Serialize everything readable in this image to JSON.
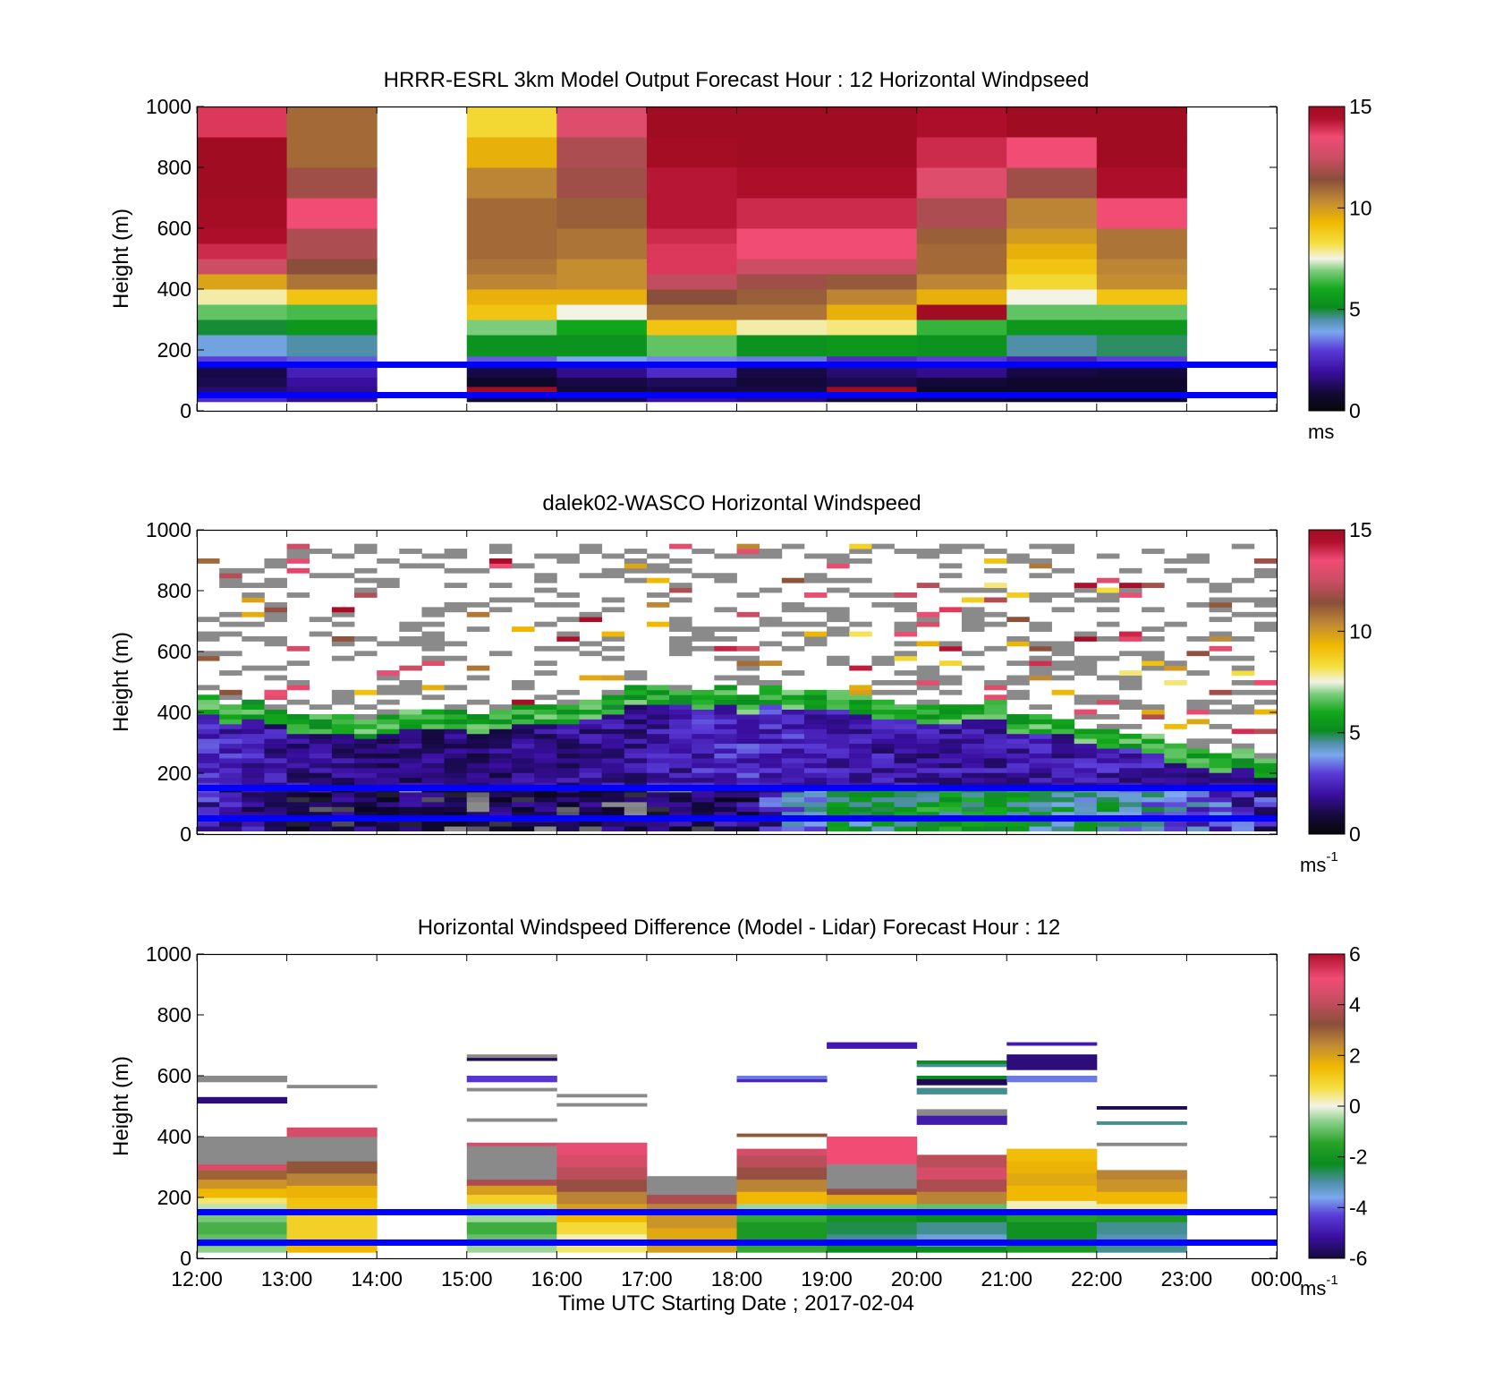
{
  "figure": {
    "xlabel": "Time UTC  Starting Date ; 2017-02-04",
    "x_ticks": [
      "12:00",
      "13:00",
      "14:00",
      "15:00",
      "16:00",
      "17:00",
      "18:00",
      "19:00",
      "20:00",
      "21:00",
      "22:00",
      "23:00",
      "00:00"
    ]
  },
  "chart_data": [
    {
      "type": "heatmap",
      "title": "HRRR-ESRL 3km Model Output   Forecast Hour : 12 Horizontal Windpseed",
      "ylabel": "Height (m)",
      "ylim": [
        0,
        1000
      ],
      "y_ticks": [
        "0",
        "200",
        "400",
        "600",
        "800",
        "1000"
      ],
      "colorbar": {
        "min": 0,
        "max": 15,
        "ticks": [
          "0",
          "5",
          "10",
          "15"
        ],
        "unit": "ms",
        "unit_sup": ""
      },
      "reference_lines_m": [
        50,
        150
      ],
      "x_hours": [
        12,
        13,
        14,
        15,
        16,
        17,
        18,
        19,
        20,
        21,
        22,
        23
      ],
      "bin_edges_m": [
        30,
        50,
        80,
        110,
        150,
        180,
        250,
        300,
        350,
        400,
        450,
        500,
        550,
        600,
        700,
        800,
        900,
        1000
      ],
      "columns": [
        {
          "hour": 12,
          "values": [
            2.5,
            1.5,
            1.2,
            1.0,
            2.8,
            3.6,
            4.5,
            6.5,
            7.8,
            9.8,
            12.5,
            14.0,
            14.5,
            14.8,
            15.0,
            15.0,
            13.8
          ]
        },
        {
          "hour": 13,
          "values": [
            1.8,
            1.8,
            2.0,
            2.3,
            3.0,
            4.0,
            5.0,
            6.2,
            9.0,
            10.8,
            11.5,
            12.0,
            12.0,
            13.5,
            11.8,
            11.0,
            11.0
          ]
        },
        {
          "hour": 14,
          "values": null
        },
        {
          "hour": 15,
          "values": [
            0.7,
            15.0,
            0.5,
            1.0,
            3.0,
            4.8,
            6.8,
            9.0,
            9.5,
            10.5,
            10.8,
            11.0,
            11.0,
            11.0,
            10.5,
            9.5,
            8.5
          ]
        },
        {
          "hour": 16,
          "values": [
            1.2,
            0.8,
            1.0,
            1.8,
            3.5,
            4.8,
            5.5,
            7.5,
            9.5,
            10.3,
            10.3,
            10.8,
            10.8,
            11.2,
            11.8,
            12.0,
            13.0
          ]
        },
        {
          "hour": 17,
          "values": [
            2.0,
            1.0,
            1.3,
            2.5,
            3.3,
            6.5,
            9.0,
            10.8,
            11.5,
            12.3,
            13.8,
            13.8,
            14.0,
            14.3,
            14.3,
            14.8,
            15.0
          ]
        },
        {
          "hour": 18,
          "values": [
            1.6,
            1.0,
            0.8,
            1.0,
            3.2,
            4.8,
            7.8,
            10.8,
            11.2,
            11.8,
            12.5,
            13.5,
            13.5,
            14.0,
            14.5,
            15.0,
            15.0
          ]
        },
        {
          "hour": 19,
          "values": [
            0.8,
            15.0,
            1.2,
            1.5,
            2.5,
            5.0,
            8.0,
            9.5,
            10.5,
            11.3,
            12.5,
            13.5,
            13.5,
            14.0,
            14.5,
            15.0,
            15.0
          ]
        },
        {
          "hour": 20,
          "values": [
            0.7,
            0.5,
            0.8,
            1.8,
            2.8,
            4.8,
            6.0,
            15.0,
            9.5,
            10.5,
            11.0,
            11.0,
            11.2,
            12.0,
            13.0,
            14.0,
            14.5
          ]
        },
        {
          "hour": 21,
          "values": [
            0.6,
            0.6,
            0.6,
            1.0,
            2.3,
            4.0,
            5.0,
            6.5,
            7.5,
            8.5,
            9.0,
            9.5,
            10.0,
            10.5,
            11.8,
            13.5,
            15.0
          ]
        },
        {
          "hour": 22,
          "values": [
            0.6,
            0.6,
            0.6,
            0.8,
            2.8,
            4.3,
            5.0,
            6.5,
            9.0,
            10.3,
            10.5,
            10.8,
            10.8,
            13.5,
            14.5,
            15.0,
            15.0
          ]
        },
        {
          "hour": 23,
          "values": null
        }
      ]
    },
    {
      "type": "heatmap",
      "title": "dalek02-WASCO  Horizontal Windspeed",
      "ylabel": "Height (m)",
      "ylim": [
        0,
        1000
      ],
      "y_ticks": [
        "0",
        "200",
        "400",
        "600",
        "800",
        "1000"
      ],
      "colorbar": {
        "min": 0,
        "max": 15,
        "ticks": [
          "0",
          "5",
          "10",
          "15"
        ],
        "unit": "ms",
        "unit_sup": "-1"
      },
      "reference_lines_m": [
        50,
        150
      ],
      "time_step_minutes": 15,
      "height_step_m": 16,
      "profile_hours": [
        12.0,
        13.0,
        14.0,
        15.0,
        16.0,
        17.0,
        18.0,
        19.0,
        20.0,
        21.0,
        22.0,
        23.0,
        24.0
      ],
      "profile_surface_speed": [
        2.2,
        1.2,
        1.0,
        1.0,
        1.0,
        1.0,
        1.5,
        4.5,
        5.0,
        4.5,
        4.0,
        3.0,
        1.8
      ],
      "profile_midlevel_speed": [
        2.5,
        1.8,
        1.5,
        1.5,
        1.8,
        2.0,
        2.5,
        2.2,
        2.0,
        2.0,
        2.2,
        2.0,
        1.5
      ],
      "profile_boundary_top_m": [
        440,
        400,
        380,
        400,
        420,
        480,
        460,
        450,
        430,
        400,
        340,
        270,
        250
      ],
      "aloft_speed": 16
    },
    {
      "type": "heatmap",
      "title": "Horizontal Windspeed Difference (Model - Lidar) Forecast Hour : 12",
      "ylabel": "Height (m)",
      "ylim": [
        0,
        1000
      ],
      "y_ticks": [
        "0",
        "200",
        "400",
        "600",
        "800",
        "1000"
      ],
      "colorbar": {
        "min": -6,
        "max": 6,
        "ticks": [
          "-6",
          "-4",
          "-2",
          "0",
          "2",
          "4",
          "6"
        ],
        "unit": "ms",
        "unit_sup": "-1"
      },
      "reference_lines_m": [
        50,
        150
      ],
      "x_hours": [
        12,
        13,
        14,
        15,
        16,
        17,
        18,
        19,
        20,
        21,
        22,
        23
      ],
      "columns": [
        {
          "hour": 12,
          "segments": [
            [
              20,
              40,
              -0.6
            ],
            [
              40,
              80,
              -1.0
            ],
            [
              80,
              120,
              -1.3
            ],
            [
              120,
              150,
              -0.8
            ],
            [
              150,
              180,
              -0.3
            ],
            [
              180,
              200,
              0.5
            ],
            [
              200,
              230,
              1.5
            ],
            [
              230,
              260,
              2.2
            ],
            [
              260,
              290,
              3.0
            ],
            [
              290,
              310,
              4.5
            ],
            [
              310,
              400,
              6.2
            ],
            [
              510,
              530,
              -5.5
            ],
            [
              580,
              600,
              6.2
            ]
          ]
        },
        {
          "hour": 13,
          "segments": [
            [
              20,
              60,
              1.5
            ],
            [
              60,
              150,
              1.0
            ],
            [
              150,
              200,
              1.3
            ],
            [
              200,
              240,
              1.6
            ],
            [
              240,
              280,
              2.5
            ],
            [
              280,
              320,
              3.2
            ],
            [
              320,
              400,
              6.2
            ],
            [
              400,
              430,
              4.5
            ],
            [
              560,
              570,
              6.2
            ]
          ]
        },
        {
          "hour": 14,
          "segments": []
        },
        {
          "hour": 15,
          "segments": [
            [
              20,
              50,
              -0.5
            ],
            [
              50,
              80,
              -1.0
            ],
            [
              80,
              120,
              -1.4
            ],
            [
              120,
              150,
              -0.5
            ],
            [
              150,
              180,
              -0.3
            ],
            [
              180,
              210,
              1.0
            ],
            [
              210,
              240,
              2.0
            ],
            [
              240,
              260,
              3.8
            ],
            [
              260,
              370,
              6.2
            ],
            [
              370,
              380,
              4.5
            ],
            [
              450,
              460,
              6.2
            ],
            [
              550,
              560,
              6.2
            ],
            [
              580,
              600,
              -4.5
            ],
            [
              650,
              660,
              -5.8
            ],
            [
              660,
              670,
              6.2
            ]
          ]
        },
        {
          "hour": 16,
          "segments": [
            [
              20,
              40,
              0.5
            ],
            [
              40,
              80,
              0.2
            ],
            [
              80,
              120,
              0.8
            ],
            [
              120,
              150,
              1.5
            ],
            [
              150,
              180,
              2.0
            ],
            [
              180,
              220,
              2.5
            ],
            [
              220,
              260,
              3.5
            ],
            [
              260,
              300,
              4.0
            ],
            [
              300,
              340,
              4.5
            ],
            [
              340,
              380,
              4.8
            ],
            [
              500,
              510,
              6.2
            ],
            [
              530,
              540,
              6.2
            ]
          ]
        },
        {
          "hour": 17,
          "segments": [
            [
              20,
              50,
              2.0
            ],
            [
              50,
              100,
              1.8
            ],
            [
              100,
              150,
              2.2
            ],
            [
              150,
              180,
              2.5
            ],
            [
              180,
              210,
              3.8
            ],
            [
              210,
              270,
              6.2
            ]
          ]
        },
        {
          "hour": 18,
          "segments": [
            [
              20,
              60,
              -1.5
            ],
            [
              60,
              120,
              -2.0
            ],
            [
              120,
              150,
              -1.5
            ],
            [
              150,
              180,
              -0.5
            ],
            [
              180,
              220,
              1.5
            ],
            [
              220,
              260,
              2.5
            ],
            [
              260,
              300,
              3.5
            ],
            [
              300,
              340,
              4.0
            ],
            [
              340,
              360,
              4.5
            ],
            [
              400,
              410,
              3.2
            ],
            [
              580,
              590,
              -4.8
            ],
            [
              590,
              600,
              -4.0
            ]
          ]
        },
        {
          "hour": 19,
          "segments": [
            [
              20,
              50,
              -2.5
            ],
            [
              50,
              80,
              -3.0
            ],
            [
              80,
              120,
              -2.7
            ],
            [
              120,
              150,
              -2.2
            ],
            [
              150,
              180,
              -0.8
            ],
            [
              180,
              210,
              1.8
            ],
            [
              210,
              230,
              3.5
            ],
            [
              230,
              310,
              6.2
            ],
            [
              310,
              400,
              5.0
            ],
            [
              690,
              710,
              -5.0
            ]
          ]
        },
        {
          "hour": 20,
          "segments": [
            [
              20,
              40,
              -2.5
            ],
            [
              40,
              80,
              -3.5
            ],
            [
              80,
              120,
              -3.0
            ],
            [
              120,
              150,
              -2.5
            ],
            [
              150,
              180,
              -1.0
            ],
            [
              180,
              220,
              2.5
            ],
            [
              220,
              260,
              3.8
            ],
            [
              260,
              300,
              4.5
            ],
            [
              300,
              340,
              4.0
            ],
            [
              440,
              470,
              -5.0
            ],
            [
              470,
              490,
              6.2
            ],
            [
              540,
              560,
              -3.0
            ],
            [
              570,
              590,
              -5.8
            ],
            [
              590,
              600,
              -2.5
            ],
            [
              630,
              640,
              -3.0
            ],
            [
              640,
              650,
              -2.5
            ]
          ]
        },
        {
          "hour": 21,
          "segments": [
            [
              20,
              60,
              -2.0
            ],
            [
              60,
              120,
              -2.3
            ],
            [
              120,
              150,
              -1.8
            ],
            [
              150,
              190,
              0.2
            ],
            [
              190,
              240,
              1.5
            ],
            [
              240,
              280,
              1.8
            ],
            [
              280,
              320,
              1.6
            ],
            [
              320,
              360,
              1.4
            ],
            [
              580,
              600,
              -4.0
            ],
            [
              620,
              670,
              -5.5
            ],
            [
              700,
              710,
              -5.0
            ]
          ]
        },
        {
          "hour": 22,
          "segments": [
            [
              20,
              50,
              -3.0
            ],
            [
              50,
              80,
              -3.2
            ],
            [
              80,
              120,
              -3.0
            ],
            [
              120,
              150,
              -2.0
            ],
            [
              150,
              180,
              0.3
            ],
            [
              180,
              220,
              1.5
            ],
            [
              220,
              260,
              2.2
            ],
            [
              260,
              290,
              2.5
            ],
            [
              370,
              380,
              6.2
            ],
            [
              440,
              450,
              -3.0
            ],
            [
              490,
              500,
              -5.8
            ]
          ]
        },
        {
          "hour": 23,
          "segments": []
        }
      ]
    }
  ]
}
